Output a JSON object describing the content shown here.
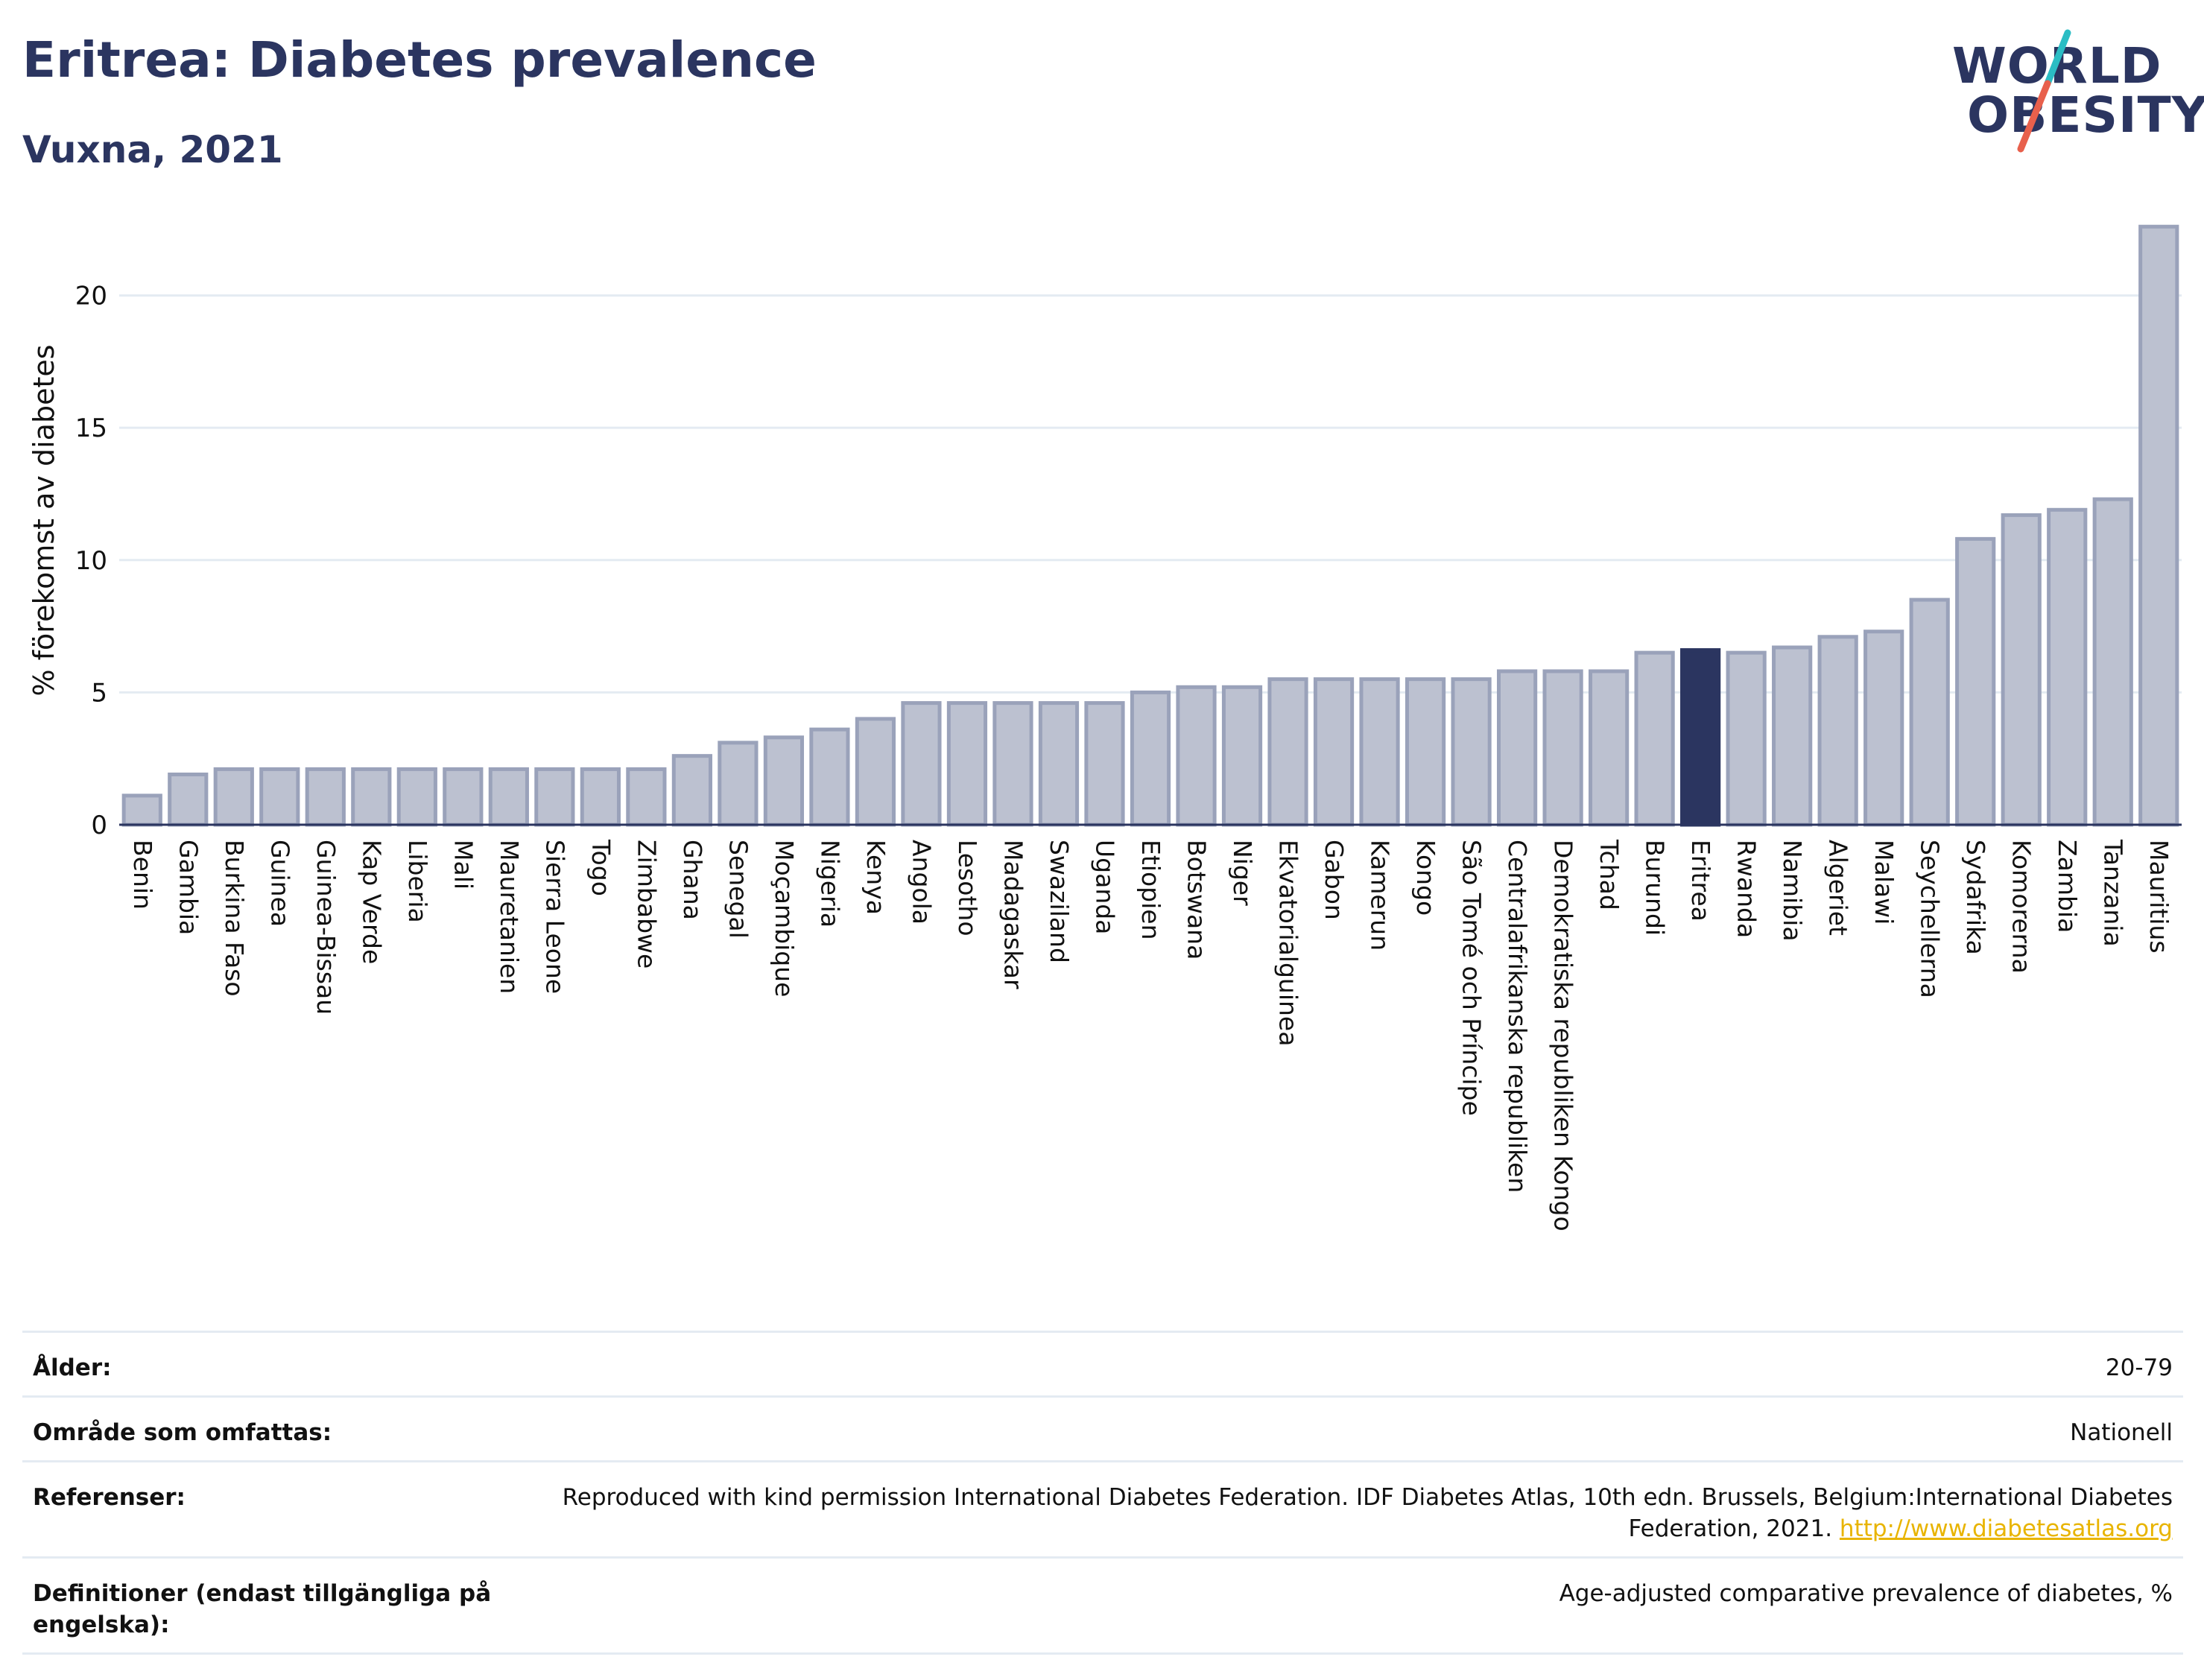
{
  "header": {
    "title": "Eritrea: Diabetes prevalence",
    "subtitle": "Vuxna, 2021"
  },
  "logo": {
    "line1": "WORLD",
    "line2": "OBESITY",
    "colors": {
      "text": "#2b3560",
      "slash_top": "#2bbdc4",
      "slash_bottom": "#e8604c"
    }
  },
  "chart_data": {
    "type": "bar",
    "ylabel": "% förekomst av diabetes",
    "xlabel": "",
    "ylim": [
      0,
      23
    ],
    "yticks": [
      0,
      5,
      10,
      15,
      20
    ],
    "grid": true,
    "highlight": "Eritrea",
    "colors": {
      "bar": "#bcc1d0",
      "bar_edge": "#9aa2ba",
      "highlight": "#2b3560",
      "axis": "#2b3560",
      "grid": "#e4ebf2"
    },
    "categories": [
      "Benin",
      "Gambia",
      "Burkina Faso",
      "Guinea",
      "Guinea-Bissau",
      "Kap Verde",
      "Liberia",
      "Mali",
      "Mauretanien",
      "Sierra Leone",
      "Togo",
      "Zimbabwe",
      "Ghana",
      "Senegal",
      "Moçambique",
      "Nigeria",
      "Kenya",
      "Angola",
      "Lesotho",
      "Madagaskar",
      "Swaziland",
      "Uganda",
      "Etiopien",
      "Botswana",
      "Niger",
      "Ekvatorialguinea",
      "Gabon",
      "Kamerun",
      "Kongo",
      "São Tomé och Príncipe",
      "Centralafrikanska republiken",
      "Demokratiska republiken Kongo",
      "Tchad",
      "Burundi",
      "Eritrea",
      "Rwanda",
      "Namibia",
      "Algeriet",
      "Malawi",
      "Seychellerna",
      "Sydafrika",
      "Komorerna",
      "Zambia",
      "Tanzania",
      "Mauritius"
    ],
    "values": [
      1.1,
      1.9,
      2.1,
      2.1,
      2.1,
      2.1,
      2.1,
      2.1,
      2.1,
      2.1,
      2.1,
      2.1,
      2.6,
      3.1,
      3.3,
      3.6,
      4.0,
      4.6,
      4.6,
      4.6,
      4.6,
      4.6,
      5.0,
      5.2,
      5.2,
      5.5,
      5.5,
      5.5,
      5.5,
      5.5,
      5.8,
      5.8,
      5.8,
      6.5,
      6.6,
      6.5,
      6.7,
      7.1,
      7.3,
      8.5,
      10.8,
      11.7,
      11.9,
      12.3,
      22.6
    ]
  },
  "info": {
    "rows": [
      {
        "key": "Ålder:",
        "value": "20-79"
      },
      {
        "key": "Område som omfattas:",
        "value": "Nationell"
      },
      {
        "key": "Referenser:",
        "value": "Reproduced with kind permission International Diabetes Federation.  IDF Diabetes Atlas, 10th edn. Brussels, Belgium:International Diabetes Federation, 2021.",
        "link": "http://www.diabetesatlas.org"
      },
      {
        "key": "Definitioner (endast tillgängliga på engelska):",
        "value": "Age-adjusted comparative prevalence of diabetes, %"
      }
    ]
  }
}
